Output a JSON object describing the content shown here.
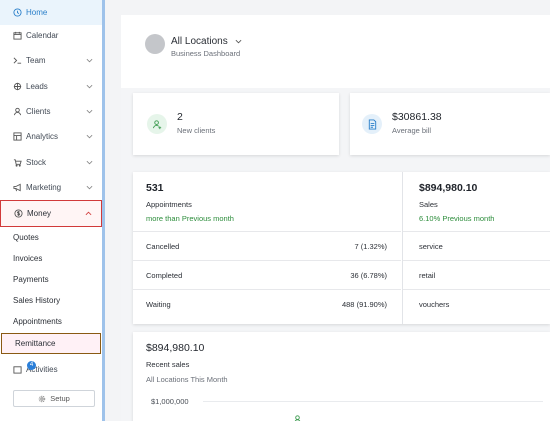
{
  "sidebar": {
    "items": [
      {
        "label": "Home",
        "icon": "clock-icon"
      },
      {
        "label": "Calendar",
        "icon": "calendar-icon"
      },
      {
        "label": "Team",
        "icon": "team-icon"
      },
      {
        "label": "Leads",
        "icon": "leads-icon"
      },
      {
        "label": "Clients",
        "icon": "clients-icon"
      },
      {
        "label": "Analytics",
        "icon": "analytics-icon"
      },
      {
        "label": "Stock",
        "icon": "stock-icon"
      },
      {
        "label": "Marketing",
        "icon": "megaphone-icon"
      },
      {
        "label": "Money",
        "icon": "money-icon"
      }
    ],
    "money_sub": [
      "Quotes",
      "Invoices",
      "Payments",
      "Sales History",
      "Appointments",
      "Remittance"
    ],
    "activities": {
      "label": "Activities",
      "badge": "4"
    },
    "setup_label": "Setup"
  },
  "header": {
    "location": "All Locations",
    "subtitle": "Business Dashboard"
  },
  "cards": {
    "new_clients": {
      "value": "2",
      "label": "New clients"
    },
    "average_bill": {
      "value": "$30861.38",
      "label": "Average bill"
    }
  },
  "appointments": {
    "value": "531",
    "label": "Appointments",
    "trend": "more than Previous month",
    "rows": [
      {
        "name": "Cancelled",
        "value": "7 (1.32%)"
      },
      {
        "name": "Completed",
        "value": "36 (6.78%)"
      },
      {
        "name": "Waiting",
        "value": "488 (91.90%)"
      }
    ]
  },
  "sales": {
    "value": "$894,980.10",
    "label": "Sales",
    "trend": "6.10% Previous month",
    "rows": [
      "service",
      "retail",
      "vouchers"
    ]
  },
  "recent_sales": {
    "value": "$894,980.10",
    "title": "Recent sales",
    "subtitle": "All Locations This Month",
    "y_tick": "$1,000,000"
  },
  "colors": {
    "accent": "#2a7fc9",
    "positive": "#2c8d3b",
    "highlight_border": "#d13a3a"
  }
}
